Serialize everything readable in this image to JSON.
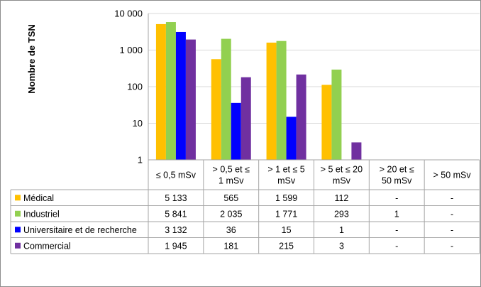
{
  "chart_data": {
    "type": "bar",
    "ylabel": "Nombre de TSN",
    "yscale": "log",
    "ylim": [
      1,
      10000
    ],
    "yticks": [
      "1",
      "10",
      "100",
      "1 000",
      "10 000"
    ],
    "grid": true,
    "categories": [
      [
        "≤ 0,5 mSv"
      ],
      [
        "> 0,5 et ≤",
        "1 mSv"
      ],
      [
        "> 1 et ≤ 5",
        "mSv"
      ],
      [
        "> 5 et ≤ 20",
        "mSv"
      ],
      [
        "> 20 et ≤",
        "50 mSv"
      ],
      [
        "> 50 mSv"
      ]
    ],
    "series": [
      {
        "name": "Médical",
        "color": "#ffc000",
        "values": [
          5133,
          565,
          1599,
          112,
          null,
          null
        ],
        "labels": [
          "5 133",
          "565",
          "1 599",
          "112",
          "-",
          "-"
        ]
      },
      {
        "name": "Industriel",
        "color": "#92d050",
        "values": [
          5841,
          2035,
          1771,
          293,
          1,
          null
        ],
        "labels": [
          "5 841",
          "2 035",
          "1 771",
          "293",
          "1",
          "-"
        ]
      },
      {
        "name": "Universitaire et de recherche",
        "color": "#0000ff",
        "values": [
          3132,
          36,
          15,
          1,
          null,
          null
        ],
        "labels": [
          "3 132",
          "36",
          "15",
          "1",
          "-",
          "-"
        ]
      },
      {
        "name": "Commercial",
        "color": "#7030a0",
        "values": [
          1945,
          181,
          215,
          3,
          null,
          null
        ],
        "labels": [
          "1 945",
          "181",
          "215",
          "3",
          "-",
          "-"
        ]
      }
    ]
  }
}
